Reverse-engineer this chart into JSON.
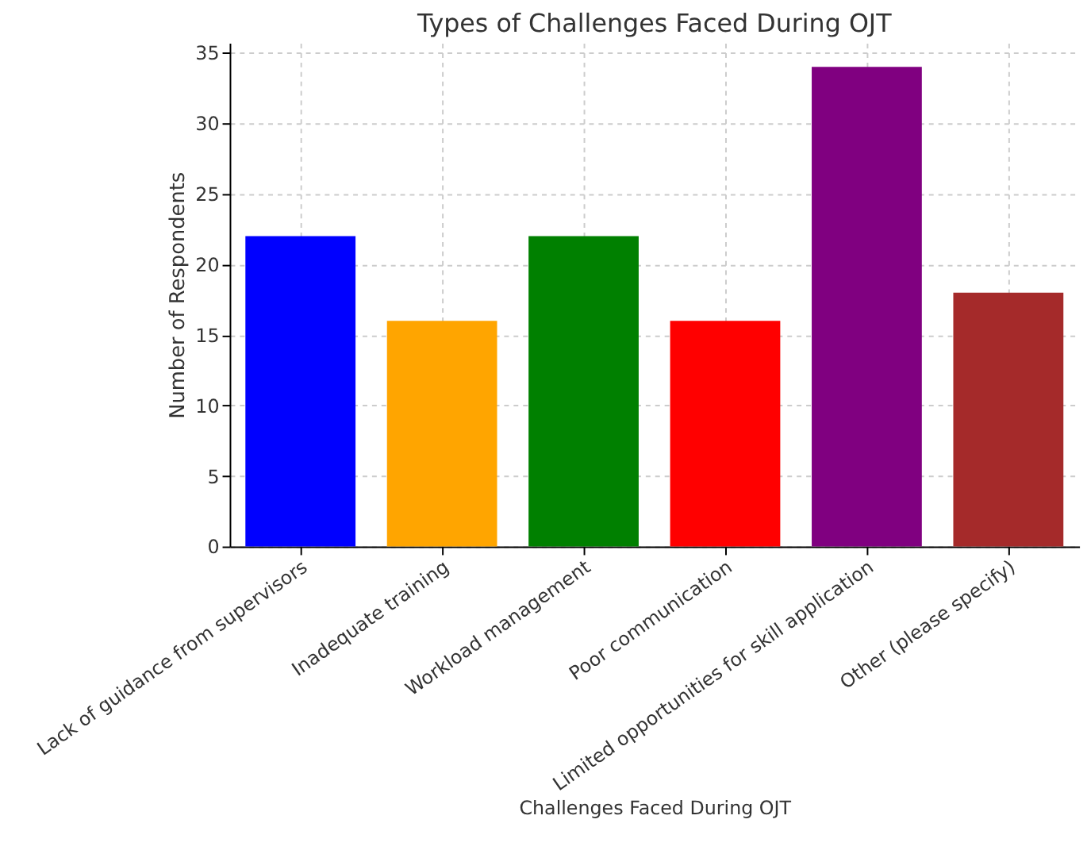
{
  "chart_data": {
    "type": "bar",
    "title": "Types of Challenges Faced During OJT",
    "xlabel": "Challenges Faced During OJT",
    "ylabel": "Number of Respondents",
    "categories": [
      "Lack of guidance from supervisors",
      "Inadequate training",
      "Workload management",
      "Poor communication",
      "Limited opportunities for skill application",
      "Other (please specify)"
    ],
    "values": [
      22,
      16,
      22,
      16,
      34,
      18
    ],
    "colors": [
      "#0000ff",
      "#ffa500",
      "#008000",
      "#ff0000",
      "#800080",
      "#a52a2a"
    ],
    "ylim": [
      0,
      35.7
    ],
    "yticks": [
      0,
      5,
      10,
      15,
      20,
      25,
      30,
      35
    ],
    "grid": true
  }
}
